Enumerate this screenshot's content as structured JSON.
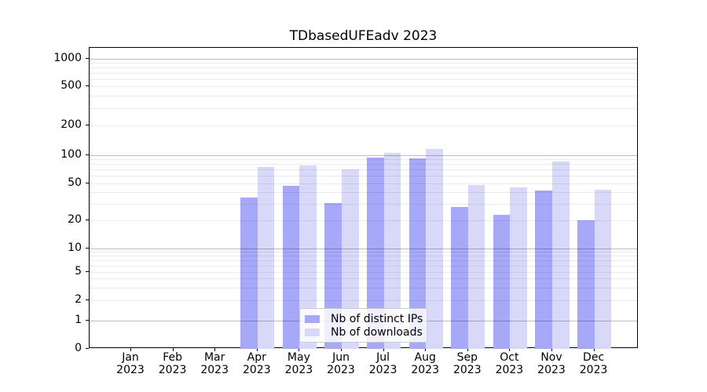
{
  "chart_data": {
    "type": "bar",
    "title": "TDbasedUFEadv 2023",
    "categories": [
      "Jan",
      "Feb",
      "Mar",
      "Apr",
      "May",
      "Jun",
      "Jul",
      "Aug",
      "Sep",
      "Oct",
      "Nov",
      "Dec"
    ],
    "x_tick_second_line": "2023",
    "series": [
      {
        "name": "Nb of distinct IPs",
        "color": "#a8a8f8",
        "values": [
          0,
          0,
          0,
          35,
          47,
          31,
          94,
          93,
          28,
          23,
          42,
          20
        ]
      },
      {
        "name": "Nb of downloads",
        "color": "#d8d8f8",
        "values": [
          0,
          0,
          0,
          75,
          78,
          70,
          105,
          115,
          48,
          45,
          85,
          43
        ]
      }
    ],
    "y_ticks": [
      "0",
      "1",
      "2",
      "5",
      "10",
      "20",
      "50",
      "100",
      "200",
      "500",
      "1000"
    ],
    "y_scale": "symlog (linear 0-1, logarithmic above 1)",
    "ylim": [
      0,
      1300
    ],
    "xlabel": "",
    "ylabel": "",
    "grid": "on",
    "legend_position": "lower center"
  }
}
